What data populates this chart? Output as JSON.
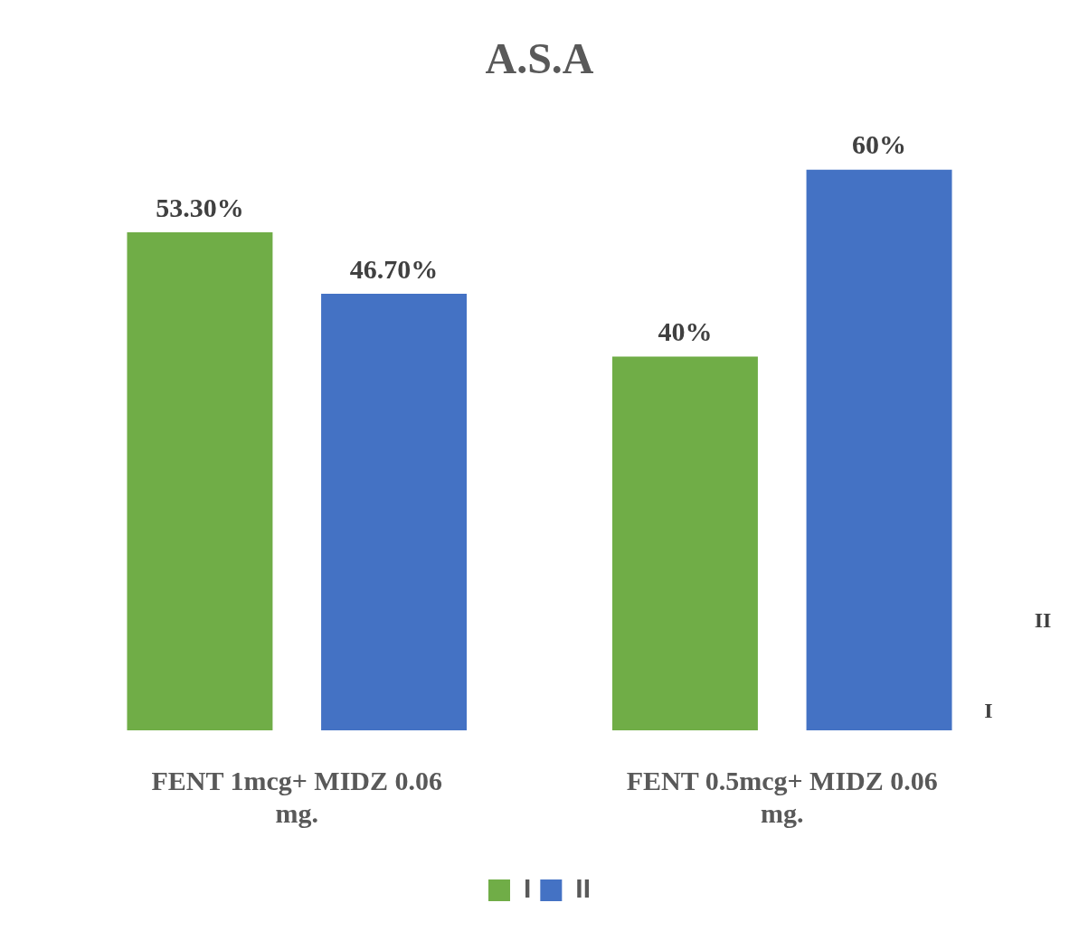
{
  "chart_data": {
    "type": "bar",
    "title": "A.S.A",
    "categories": [
      "FENT 1mcg+ MIDZ 0.06 mg.",
      "FENT 0.5mcg+ MIDZ 0.06 mg."
    ],
    "series": [
      {
        "name": "I",
        "color": "#70ad47",
        "values": [
          53.3,
          40
        ],
        "value_labels": [
          "53.30%",
          "40%"
        ]
      },
      {
        "name": "II",
        "color": "#4472c4",
        "values": [
          46.7,
          60
        ],
        "value_labels": [
          "46.70%",
          "60%"
        ]
      }
    ],
    "grid": false,
    "legend": "bottom",
    "tick_labels": "x"
  }
}
